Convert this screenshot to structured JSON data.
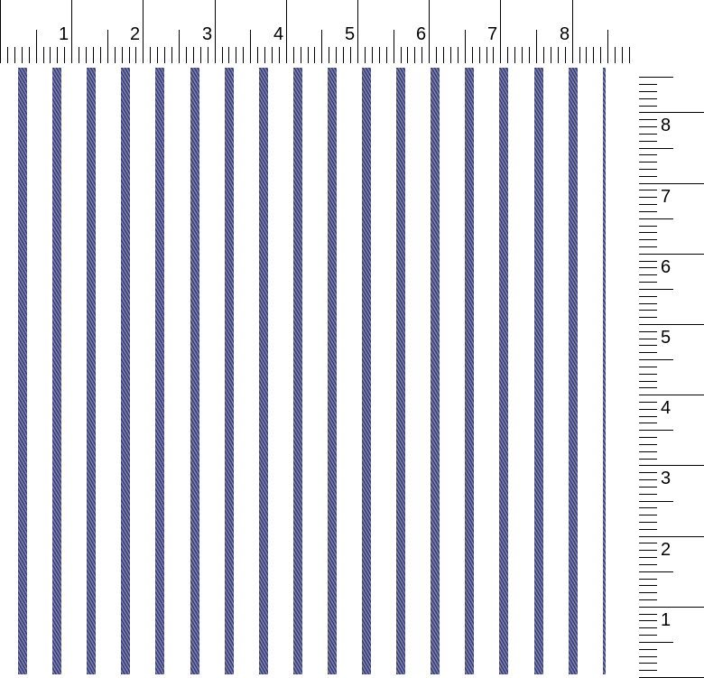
{
  "top_ruler": {
    "labels": [
      "1",
      "2",
      "3",
      "4",
      "5",
      "6",
      "7",
      "8"
    ]
  },
  "right_ruler": {
    "labels": [
      "8",
      "7",
      "6",
      "5",
      "4",
      "3",
      "2",
      "1"
    ]
  },
  "fabric": {
    "stripe_color": "#3a3f75",
    "stripe_highlight": "#7a7fae",
    "background": "#ffffff",
    "stripe_count": 18
  }
}
